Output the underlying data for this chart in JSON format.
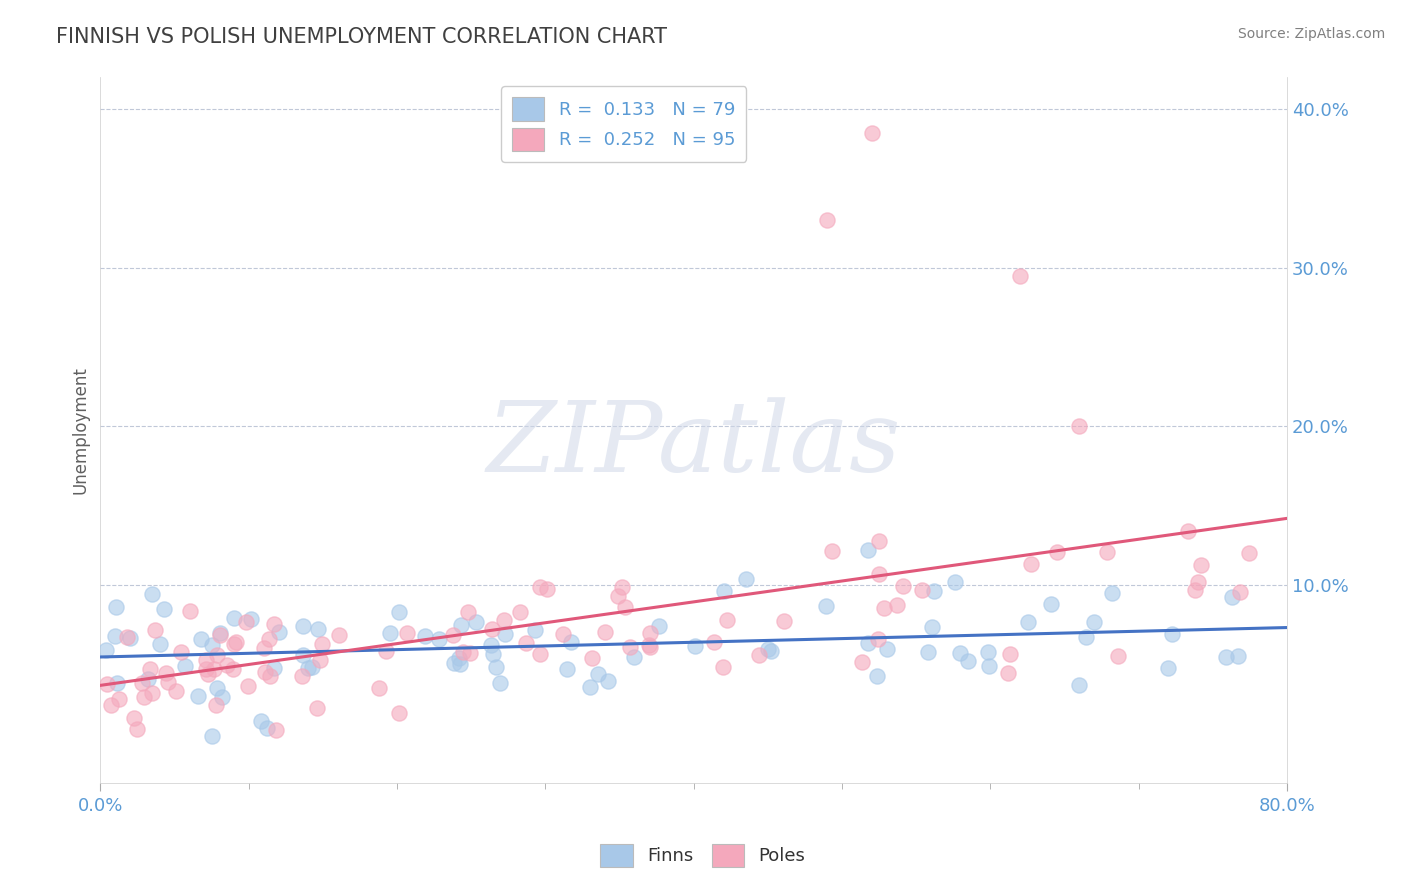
{
  "title": "FINNISH VS POLISH UNEMPLOYMENT CORRELATION CHART",
  "source": "Source: ZipAtlas.com",
  "ylabel": "Unemployment",
  "finn_R": 0.133,
  "finn_N": 79,
  "pole_R": 0.252,
  "pole_N": 95,
  "xlim": [
    0.0,
    0.8
  ],
  "ylim": [
    -0.025,
    0.42
  ],
  "yticks": [
    0.1,
    0.2,
    0.3,
    0.4
  ],
  "ytick_labels": [
    "10.0%",
    "20.0%",
    "30.0%",
    "40.0%"
  ],
  "finn_color": "#a8c8e8",
  "pole_color": "#f4a8bc",
  "finn_line_color": "#4472c4",
  "pole_line_color": "#e0587a",
  "background_color": "#ffffff",
  "watermark_text": "ZIPatlas",
  "grid_color": "#c0c8d8",
  "tick_color": "#5b9bd5",
  "title_color": "#404040",
  "source_color": "#808080",
  "ylabel_color": "#606060"
}
